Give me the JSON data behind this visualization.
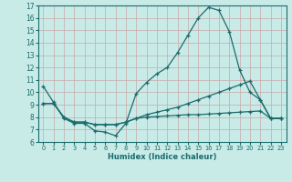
{
  "xlabel": "Humidex (Indice chaleur)",
  "xlim": [
    -0.5,
    23.5
  ],
  "ylim": [
    6,
    17
  ],
  "xticks": [
    0,
    1,
    2,
    3,
    4,
    5,
    6,
    7,
    8,
    9,
    10,
    11,
    12,
    13,
    14,
    15,
    16,
    17,
    18,
    19,
    20,
    21,
    22,
    23
  ],
  "yticks": [
    6,
    7,
    8,
    9,
    10,
    11,
    12,
    13,
    14,
    15,
    16,
    17
  ],
  "bg_color": "#c8ebe8",
  "grid_color": "#b8d8d5",
  "line_color": "#1a6b6b",
  "line1_x": [
    0,
    1,
    2,
    3,
    4,
    5,
    6,
    7,
    8,
    9,
    10,
    11,
    12,
    13,
    14,
    15,
    16,
    17,
    18,
    19,
    20,
    21,
    22,
    23
  ],
  "line1_y": [
    10.5,
    9.2,
    7.9,
    7.5,
    7.5,
    6.9,
    6.8,
    6.5,
    7.5,
    9.9,
    10.8,
    11.5,
    12.0,
    13.2,
    14.6,
    16.0,
    16.85,
    16.6,
    14.9,
    11.8,
    10.0,
    9.4,
    7.9,
    7.9
  ],
  "line2_x": [
    0,
    1,
    2,
    3,
    4,
    5,
    6,
    7,
    8,
    9,
    10,
    11,
    12,
    13,
    14,
    15,
    16,
    17,
    18,
    19,
    20,
    21,
    22,
    23
  ],
  "line2_y": [
    9.1,
    9.1,
    8.0,
    7.6,
    7.6,
    7.4,
    7.4,
    7.4,
    7.6,
    7.9,
    8.2,
    8.4,
    8.6,
    8.8,
    9.1,
    9.4,
    9.7,
    10.0,
    10.3,
    10.6,
    10.9,
    9.4,
    7.9,
    7.9
  ],
  "line3_x": [
    0,
    1,
    2,
    3,
    4,
    5,
    6,
    7,
    8,
    9,
    10,
    11,
    12,
    13,
    14,
    15,
    16,
    17,
    18,
    19,
    20,
    21,
    22,
    23
  ],
  "line3_y": [
    9.1,
    9.1,
    8.0,
    7.6,
    7.6,
    7.4,
    7.4,
    7.4,
    7.6,
    7.9,
    8.0,
    8.05,
    8.1,
    8.15,
    8.2,
    8.2,
    8.25,
    8.3,
    8.35,
    8.4,
    8.45,
    8.5,
    7.9,
    7.9
  ]
}
